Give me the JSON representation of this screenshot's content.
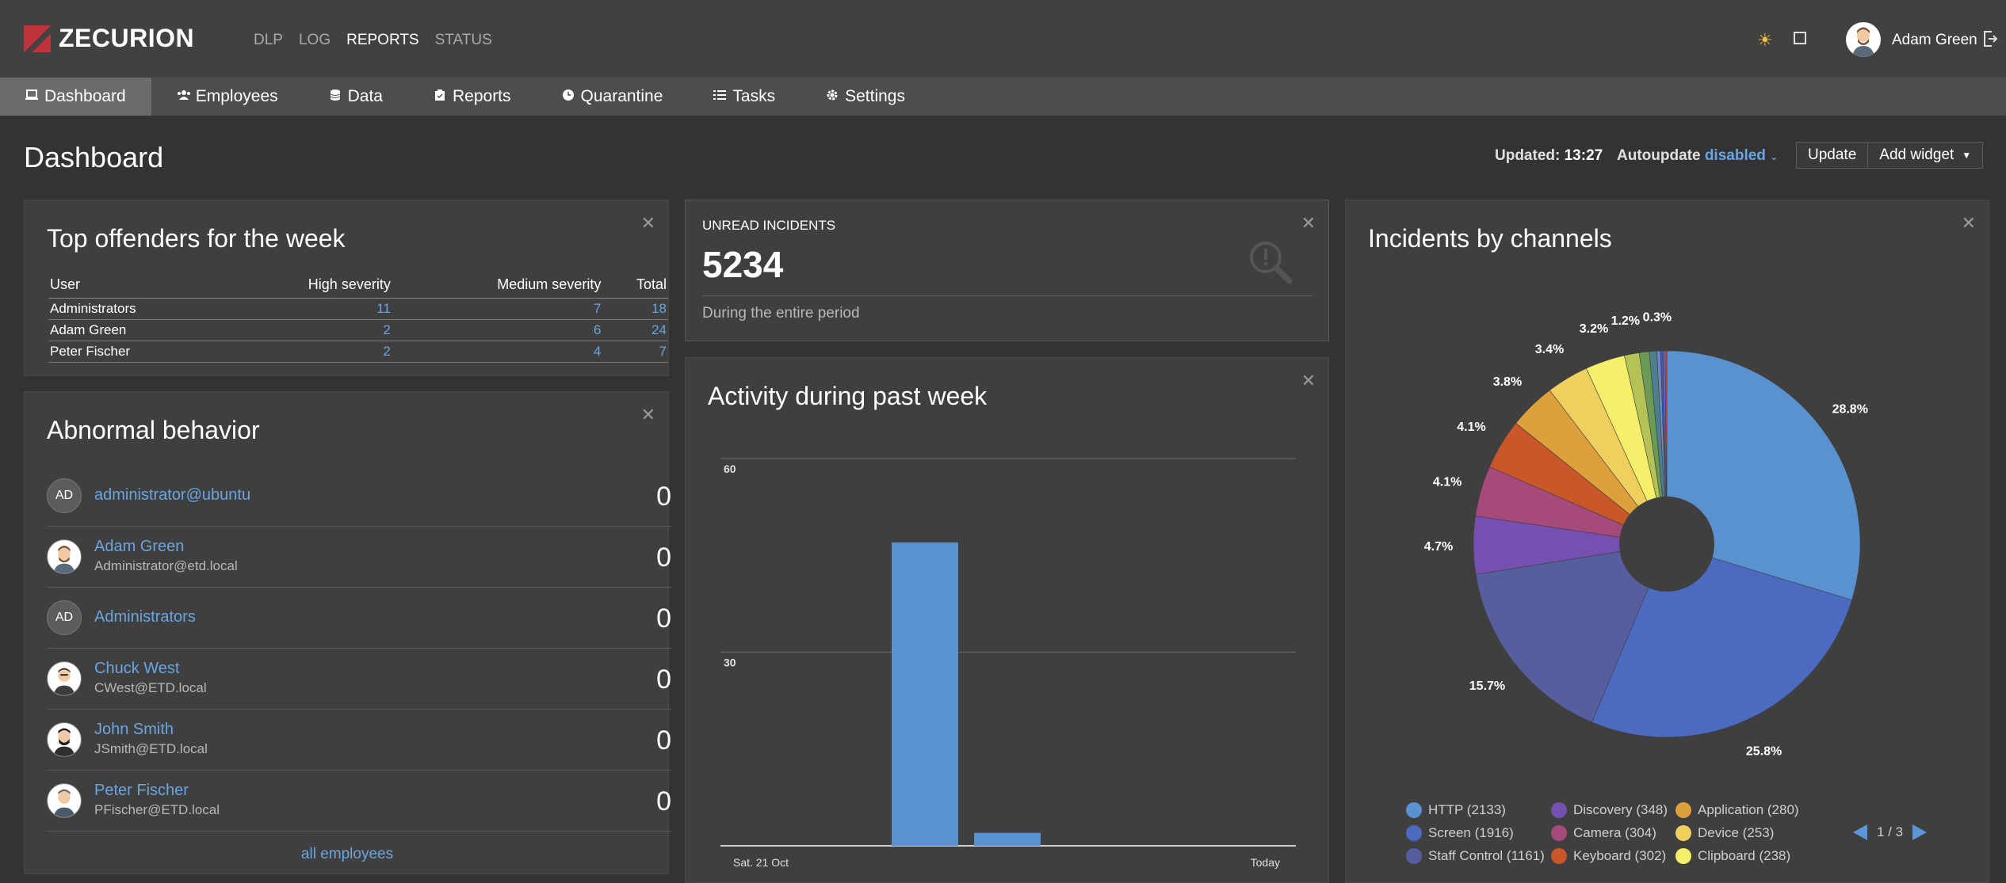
{
  "header": {
    "brand": "ZECURION",
    "nav": [
      {
        "label": "DLP"
      },
      {
        "label": "LOG"
      },
      {
        "label": "REPORTS"
      },
      {
        "label": "STATUS"
      }
    ],
    "user_name": "Adam Green"
  },
  "mainnav": [
    {
      "label": "Dashboard",
      "icon": "laptop-icon"
    },
    {
      "label": "Employees",
      "icon": "users-icon"
    },
    {
      "label": "Data",
      "icon": "database-icon"
    },
    {
      "label": "Reports",
      "icon": "clipboard-icon"
    },
    {
      "label": "Quarantine",
      "icon": "clock-icon"
    },
    {
      "label": "Tasks",
      "icon": "tasks-icon"
    },
    {
      "label": "Settings",
      "icon": "gear-icon"
    }
  ],
  "page": {
    "title": "Dashboard",
    "updated_label": "Updated:",
    "updated_time": "13:27",
    "autoupdate_label": "Autoupdate",
    "autoupdate_value": "disabled",
    "update_button": "Update",
    "add_widget_button": "Add widget"
  },
  "offenders": {
    "title": "Top offenders for the week",
    "columns": [
      "User",
      "High severity",
      "Medium severity",
      "Total"
    ],
    "rows": [
      {
        "user": "Administrators",
        "high": "11",
        "medium": "7",
        "total": "18"
      },
      {
        "user": "Adam Green",
        "high": "2",
        "medium": "6",
        "total": "24"
      },
      {
        "user": "Peter Fischer",
        "high": "2",
        "medium": "4",
        "total": "7"
      }
    ]
  },
  "abnormal": {
    "title": "Abnormal behavior",
    "rows": [
      {
        "initials": "AD",
        "name": "administrator@ubuntu",
        "sub": "",
        "count": "0"
      },
      {
        "initials": "",
        "name": "Adam Green",
        "sub": "Administrator@etd.local",
        "count": "0"
      },
      {
        "initials": "AD",
        "name": "Administrators",
        "sub": "",
        "count": "0"
      },
      {
        "initials": "",
        "name": "Chuck West",
        "sub": "CWest@ETD.local",
        "count": "0"
      },
      {
        "initials": "",
        "name": "John Smith",
        "sub": "JSmith@ETD.local",
        "count": "0"
      },
      {
        "initials": "",
        "name": "Peter Fischer",
        "sub": "PFischer@ETD.local",
        "count": "0"
      }
    ],
    "all_link": "all employees"
  },
  "unread": {
    "label": "UNREAD INCIDENTS",
    "value": "5234",
    "sub": "During the entire period"
  },
  "activity": {
    "title": "Activity during past week"
  },
  "channels": {
    "title": "Incidents by channels",
    "pager": "1 / 3"
  },
  "colors": {
    "accent": "#6aa5e0",
    "bar": "#5a92cf"
  },
  "chart_data": [
    {
      "type": "bar",
      "categories": [
        "Sat. 21 Oct",
        "",
        "",
        "",
        "",
        "",
        "Today"
      ],
      "values": [
        0,
        0,
        47,
        2,
        0,
        0,
        0
      ],
      "ylim": [
        0,
        60
      ],
      "yticks": [
        30,
        60
      ],
      "x_tick_labels": [
        "Sat. 21 Oct",
        "Today"
      ],
      "grid": true
    },
    {
      "type": "pie",
      "donut": true,
      "slices": [
        {
          "name": "HTTP",
          "value": 2133,
          "label": "HTTP (2133)",
          "pct": "28.8%",
          "color": "#5a92cf"
        },
        {
          "name": "Screen",
          "value": 1916,
          "label": "Screen (1916)",
          "pct": "25.8%",
          "color": "#4c6bc0"
        },
        {
          "name": "Staff Control",
          "value": 1161,
          "label": "Staff Control (1161)",
          "pct": "15.7%",
          "color": "#575e9e"
        },
        {
          "name": "Discovery",
          "value": 348,
          "label": "Discovery (348)",
          "pct": "4.7%",
          "color": "#7550b0"
        },
        {
          "name": "Camera",
          "value": 304,
          "label": "Camera (304)",
          "pct": "4.1%",
          "color": "#a64a7c"
        },
        {
          "name": "Keyboard",
          "value": 302,
          "label": "Keyboard (302)",
          "pct": "4.1%",
          "color": "#c9572a"
        },
        {
          "name": "Application",
          "value": 280,
          "label": "Application (280)",
          "pct": "3.8%",
          "color": "#dda03c"
        },
        {
          "name": "Device",
          "value": 253,
          "label": "Device (253)",
          "pct": "3.4%",
          "color": "#efd05e"
        },
        {
          "name": "Clipboard",
          "value": 238,
          "label": "Clipboard (238)",
          "pct": "3.2%",
          "color": "#f5ef6a"
        },
        {
          "name": "",
          "value": 89,
          "pct": "1.2%",
          "color": "#b6c255"
        },
        {
          "name": "",
          "value": 60,
          "pct": "",
          "color": "#6a9a55"
        },
        {
          "name": "",
          "value": 45,
          "pct": "",
          "color": "#4f7e8c"
        },
        {
          "name": "",
          "value": 22,
          "pct": "0.3%",
          "color": "#6d87c6"
        },
        {
          "name": "",
          "value": 15,
          "pct": "",
          "color": "#3d5aa8"
        },
        {
          "name": "",
          "value": 12,
          "pct": "",
          "color": "#7a6cc0"
        },
        {
          "name": "",
          "value": 10,
          "pct": "",
          "color": "#c14a50"
        }
      ],
      "legend_placement": "bottom"
    }
  ]
}
